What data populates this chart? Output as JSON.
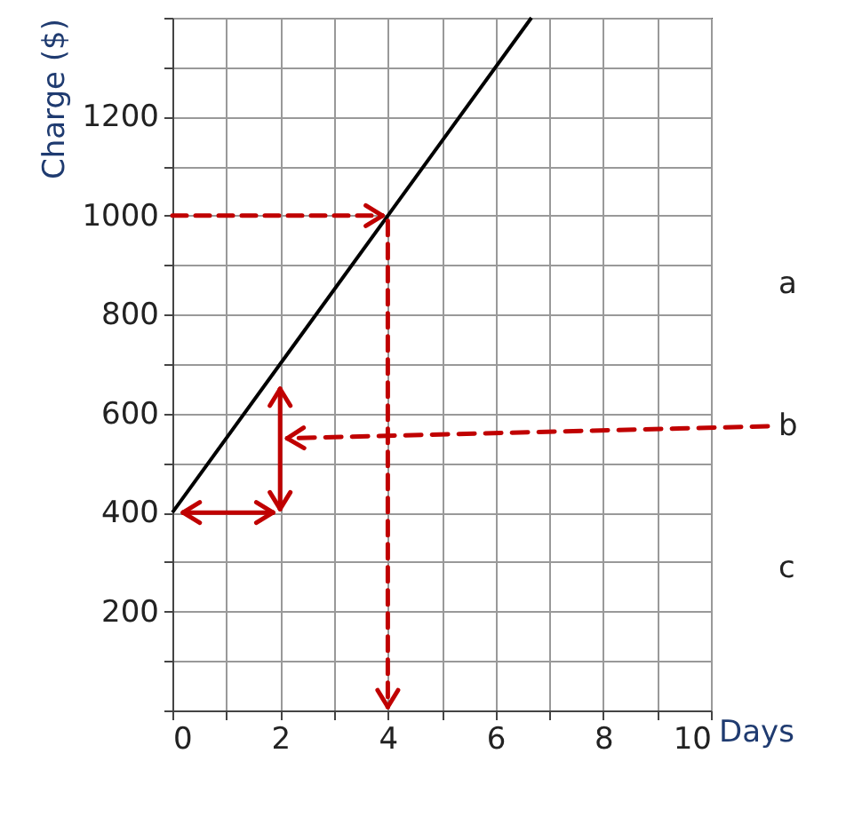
{
  "chart_data": {
    "type": "line",
    "xlabel": "Days",
    "ylabel": "Charge ($)",
    "x": [
      0,
      2,
      4,
      6.667
    ],
    "series": [
      {
        "color": "#000000",
        "values": [
          400,
          700,
          1000,
          1400
        ]
      }
    ],
    "xlim": [
      0,
      10
    ],
    "ylim": [
      0,
      1400
    ],
    "xticks": [
      0,
      {
        "value": 1,
        "label": null
      },
      2,
      {
        "value": 3,
        "label": null
      },
      4,
      {
        "value": 5,
        "label": null
      },
      6,
      {
        "value": 7,
        "label": null
      },
      8,
      {
        "value": 9,
        "label": null
      },
      10
    ],
    "yticks": [
      {
        "value": 0,
        "label": null
      },
      {
        "value": 100,
        "label": null
      },
      200,
      {
        "value": 300,
        "label": null
      },
      400,
      {
        "value": 500,
        "label": null
      },
      600,
      {
        "value": 700,
        "label": null
      },
      800,
      {
        "value": 900,
        "label": null
      },
      1000,
      {
        "value": 1100,
        "label": null
      },
      1200,
      {
        "value": 1300,
        "label": null
      },
      {
        "value": 1400,
        "label": null
      }
    ],
    "grid": true,
    "marker": "none",
    "line_style": "solid",
    "ref_lines": [
      {
        "axis": "y",
        "value": 1000,
        "color": "#c00000",
        "line_style": "dashed"
      },
      {
        "axis": "x",
        "value": 4,
        "color": "#c00000",
        "line_style": "dashed"
      }
    ],
    "annotations": [
      "a",
      "b",
      "c"
    ]
  }
}
